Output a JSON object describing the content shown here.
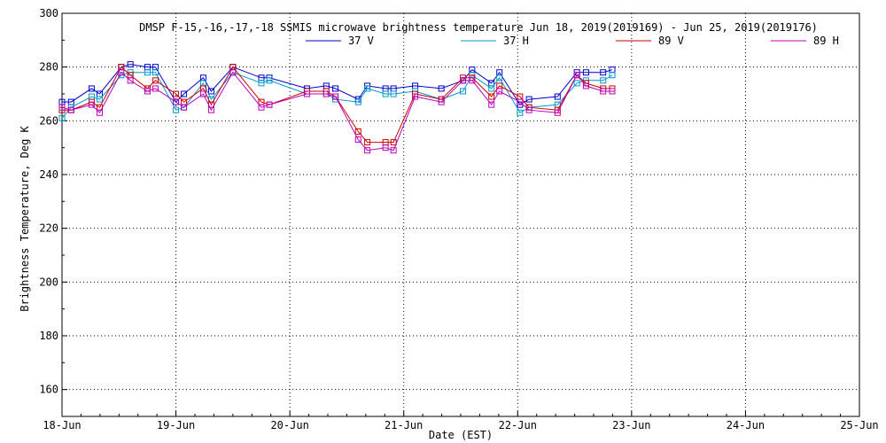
{
  "chart_data": {
    "type": "line",
    "title": "DMSP F-15,-16,-17,-18 SSMIS microwave brightness temperature Jun 18, 2019(2019169) - Jun 25, 2019(2019176)",
    "xlabel": "Date (EST)",
    "ylabel": "Brightness Temperature, Deg K",
    "xlim": [
      0,
      7
    ],
    "ylim": [
      150,
      300
    ],
    "xticks": [
      {
        "value": 0,
        "label": "18-Jun"
      },
      {
        "value": 1,
        "label": "19-Jun"
      },
      {
        "value": 2,
        "label": "20-Jun"
      },
      {
        "value": 3,
        "label": "21-Jun"
      },
      {
        "value": 4,
        "label": "22-Jun"
      },
      {
        "value": 5,
        "label": "23-Jun"
      },
      {
        "value": 6,
        "label": "24-Jun"
      },
      {
        "value": 7,
        "label": "25-Jun"
      }
    ],
    "yticks": [
      160,
      180,
      200,
      220,
      240,
      260,
      280,
      300
    ],
    "grid": true,
    "legend_position": "top-center",
    "series": [
      {
        "name": "37 V",
        "color": "#0000cc",
        "x": [
          0.0,
          0.08,
          0.26,
          0.33,
          0.52,
          0.6,
          0.75,
          0.82,
          1.0,
          1.07,
          1.24,
          1.31,
          1.5,
          1.75,
          1.82,
          2.15,
          2.32,
          2.4,
          2.6,
          2.68,
          2.84,
          2.91,
          3.1,
          3.33,
          3.52,
          3.6,
          3.77,
          3.84,
          4.02,
          4.1,
          4.35,
          4.52,
          4.6,
          4.75,
          4.83
        ],
        "y": [
          267,
          267,
          272,
          270,
          280,
          281,
          280,
          280,
          267,
          270,
          276,
          271,
          280,
          276,
          276,
          272,
          273,
          272,
          268,
          273,
          272,
          272,
          273,
          272,
          275,
          279,
          274,
          278,
          266,
          268,
          269,
          278,
          278,
          278,
          279
        ]
      },
      {
        "name": "37 H",
        "color": "#0099cc",
        "x": [
          0.0,
          0.08,
          0.26,
          0.33,
          0.52,
          0.6,
          0.75,
          0.82,
          1.0,
          1.07,
          1.24,
          1.31,
          1.5,
          1.75,
          1.82,
          2.15,
          2.32,
          2.4,
          2.6,
          2.68,
          2.84,
          2.91,
          3.1,
          3.33,
          3.52,
          3.6,
          3.77,
          3.84,
          4.02,
          4.1,
          4.35,
          4.52,
          4.6,
          4.75,
          4.83
        ],
        "y": [
          261,
          265,
          269,
          268,
          277,
          278,
          278,
          278,
          264,
          265,
          274,
          268,
          278,
          274,
          275,
          270,
          270,
          268,
          267,
          272,
          270,
          270,
          271,
          268,
          271,
          277,
          272,
          276,
          263,
          265,
          266,
          274,
          275,
          275,
          277
        ]
      },
      {
        "name": "89 V",
        "color": "#cc0000",
        "x": [
          0.0,
          0.08,
          0.26,
          0.33,
          0.52,
          0.6,
          0.75,
          0.82,
          1.0,
          1.07,
          1.24,
          1.31,
          1.5,
          1.75,
          1.82,
          2.15,
          2.32,
          2.4,
          2.6,
          2.68,
          2.84,
          2.91,
          3.1,
          3.33,
          3.52,
          3.6,
          3.77,
          3.84,
          4.02,
          4.1,
          4.35,
          4.52,
          4.6,
          4.75,
          4.83
        ],
        "y": [
          264,
          264,
          267,
          265,
          280,
          277,
          272,
          275,
          270,
          267,
          272,
          266,
          280,
          267,
          266,
          271,
          271,
          269,
          256,
          252,
          252,
          252,
          270,
          268,
          276,
          276,
          269,
          273,
          269,
          265,
          264,
          277,
          274,
          272,
          272
        ]
      },
      {
        "name": "89 H",
        "color": "#bb00bb",
        "x": [
          0.0,
          0.08,
          0.26,
          0.33,
          0.52,
          0.6,
          0.75,
          0.82,
          1.0,
          1.07,
          1.24,
          1.31,
          1.5,
          1.75,
          1.82,
          2.15,
          2.32,
          2.4,
          2.6,
          2.68,
          2.84,
          2.91,
          3.1,
          3.33,
          3.52,
          3.6,
          3.77,
          3.84,
          4.02,
          4.1,
          4.35,
          4.52,
          4.6,
          4.75,
          4.83
        ],
        "y": [
          265,
          264,
          266,
          263,
          278,
          275,
          271,
          272,
          267,
          265,
          270,
          264,
          278,
          265,
          266,
          270,
          270,
          269,
          253,
          249,
          250,
          249,
          269,
          267,
          275,
          275,
          266,
          271,
          267,
          264,
          263,
          277,
          273,
          271,
          271
        ]
      }
    ]
  }
}
